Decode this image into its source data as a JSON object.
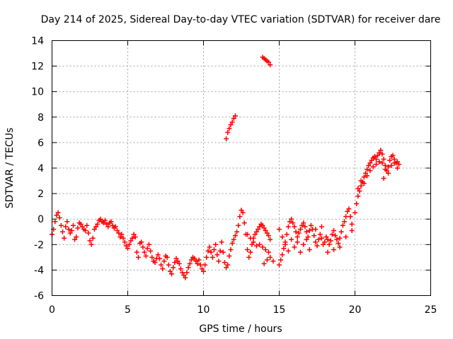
{
  "chart_data": {
    "type": "scatter",
    "title": "Day 214 of 2025, Sidereal Day-to-day VTEC variation (SDTVAR) for receiver dare",
    "xlabel": "GPS time / hours",
    "ylabel": "SDTVAR / TECUs",
    "xlim": [
      0,
      25
    ],
    "ylim": [
      -6,
      14
    ],
    "x_ticks": [
      0,
      5,
      10,
      15,
      20,
      25
    ],
    "y_ticks": [
      -6,
      -4,
      -2,
      0,
      2,
      4,
      6,
      8,
      10,
      12,
      14
    ],
    "grid": true,
    "marker": "+",
    "series_color": "#ff0000",
    "series": [
      {
        "name": "SDTVAR",
        "points": [
          [
            0.0,
            -1.2
          ],
          [
            0.1,
            -0.8
          ],
          [
            0.2,
            -0.2
          ],
          [
            0.3,
            0.3
          ],
          [
            0.4,
            0.5
          ],
          [
            0.5,
            0.1
          ],
          [
            0.6,
            -0.5
          ],
          [
            0.7,
            -1.0
          ],
          [
            0.8,
            -1.5
          ],
          [
            0.9,
            -0.6
          ],
          [
            1.0,
            -0.2
          ],
          [
            1.1,
            -0.8
          ],
          [
            1.2,
            -1.1
          ],
          [
            1.3,
            -0.9
          ],
          [
            1.4,
            -0.5
          ],
          [
            1.5,
            -1.6
          ],
          [
            1.6,
            -1.4
          ],
          [
            1.7,
            -0.7
          ],
          [
            1.8,
            -0.3
          ],
          [
            1.9,
            -0.4
          ],
          [
            2.0,
            -0.6
          ],
          [
            2.1,
            -0.8
          ],
          [
            2.2,
            -0.9
          ],
          [
            2.3,
            -0.5
          ],
          [
            2.4,
            -1.1
          ],
          [
            2.5,
            -1.7
          ],
          [
            2.6,
            -2.0
          ],
          [
            2.7,
            -1.5
          ],
          [
            2.8,
            -0.8
          ],
          [
            2.9,
            -0.6
          ],
          [
            3.0,
            -0.4
          ],
          [
            3.1,
            -0.1
          ],
          [
            3.2,
            0.0
          ],
          [
            3.3,
            -0.2
          ],
          [
            3.4,
            -0.3
          ],
          [
            3.5,
            -0.1
          ],
          [
            3.6,
            -0.4
          ],
          [
            3.7,
            -0.6
          ],
          [
            3.8,
            -0.3
          ],
          [
            3.9,
            -0.2
          ],
          [
            4.0,
            -0.5
          ],
          [
            4.1,
            -0.7
          ],
          [
            4.2,
            -0.6
          ],
          [
            4.3,
            -0.9
          ],
          [
            4.4,
            -1.1
          ],
          [
            4.5,
            -1.4
          ],
          [
            4.6,
            -1.2
          ],
          [
            4.7,
            -1.5
          ],
          [
            4.8,
            -1.8
          ],
          [
            4.9,
            -2.1
          ],
          [
            5.0,
            -2.3
          ],
          [
            5.1,
            -2.0
          ],
          [
            5.2,
            -1.7
          ],
          [
            5.3,
            -1.5
          ],
          [
            5.4,
            -1.2
          ],
          [
            5.5,
            -1.4
          ],
          [
            5.6,
            -2.6
          ],
          [
            5.7,
            -3.0
          ],
          [
            5.8,
            -1.9
          ],
          [
            5.9,
            -1.8
          ],
          [
            6.0,
            -2.2
          ],
          [
            6.1,
            -2.6
          ],
          [
            6.2,
            -2.9
          ],
          [
            6.3,
            -2.3
          ],
          [
            6.4,
            -2.0
          ],
          [
            6.5,
            -2.5
          ],
          [
            6.6,
            -3.0
          ],
          [
            6.7,
            -3.3
          ],
          [
            6.8,
            -3.4
          ],
          [
            6.9,
            -3.1
          ],
          [
            7.0,
            -2.8
          ],
          [
            7.1,
            -3.1
          ],
          [
            7.2,
            -3.6
          ],
          [
            7.3,
            -3.9
          ],
          [
            7.4,
            -3.3
          ],
          [
            7.5,
            -2.9
          ],
          [
            7.6,
            -3.0
          ],
          [
            7.7,
            -3.6
          ],
          [
            7.8,
            -4.1
          ],
          [
            7.9,
            -4.3
          ],
          [
            8.0,
            -3.8
          ],
          [
            8.1,
            -3.4
          ],
          [
            8.2,
            -3.1
          ],
          [
            8.3,
            -3.3
          ],
          [
            8.4,
            -3.5
          ],
          [
            8.5,
            -3.9
          ],
          [
            8.6,
            -4.2
          ],
          [
            8.7,
            -4.4
          ],
          [
            8.8,
            -4.6
          ],
          [
            8.9,
            -4.2
          ],
          [
            9.0,
            -3.8
          ],
          [
            9.1,
            -3.5
          ],
          [
            9.2,
            -3.2
          ],
          [
            9.3,
            -3.0
          ],
          [
            9.4,
            -3.1
          ],
          [
            9.5,
            -3.3
          ],
          [
            9.6,
            -3.5
          ],
          [
            9.7,
            -3.2
          ],
          [
            9.8,
            -3.6
          ],
          [
            9.9,
            -3.9
          ],
          [
            10.0,
            -4.1
          ],
          [
            10.1,
            -3.6
          ],
          [
            10.2,
            -3.0
          ],
          [
            10.3,
            -2.5
          ],
          [
            10.4,
            -2.2
          ],
          [
            10.5,
            -2.6
          ],
          [
            10.6,
            -3.0
          ],
          [
            10.7,
            -2.4
          ],
          [
            10.8,
            -2.0
          ],
          [
            10.9,
            -2.8
          ],
          [
            11.0,
            -3.3
          ],
          [
            11.1,
            -2.5
          ],
          [
            11.2,
            -1.8
          ],
          [
            11.3,
            -2.6
          ],
          [
            11.4,
            -3.4
          ],
          [
            11.5,
            -3.8
          ],
          [
            11.6,
            -3.6
          ],
          [
            11.7,
            -2.9
          ],
          [
            11.8,
            -2.4
          ],
          [
            11.9,
            -1.9
          ],
          [
            12.0,
            -1.6
          ],
          [
            12.1,
            -1.3
          ],
          [
            12.2,
            -1.0
          ],
          [
            12.3,
            -0.5
          ],
          [
            12.4,
            0.2
          ],
          [
            12.5,
            0.7
          ],
          [
            12.6,
            0.5
          ],
          [
            12.7,
            -0.3
          ],
          [
            12.8,
            -1.2
          ],
          [
            12.9,
            -2.4
          ],
          [
            13.0,
            -3.0
          ],
          [
            13.1,
            -2.6
          ],
          [
            13.2,
            -2.0
          ],
          [
            13.3,
            -1.5
          ],
          [
            13.4,
            -1.2
          ],
          [
            13.5,
            -1.0
          ],
          [
            13.6,
            -0.8
          ],
          [
            13.7,
            -0.6
          ],
          [
            13.8,
            -0.4
          ],
          [
            13.9,
            -0.5
          ],
          [
            14.0,
            -0.7
          ],
          [
            14.1,
            -0.9
          ],
          [
            14.2,
            -1.1
          ],
          [
            14.3,
            -1.3
          ],
          [
            14.4,
            -1.6
          ],
          [
            14.0,
            -3.5
          ],
          [
            14.2,
            -3.2
          ],
          [
            14.4,
            -3.0
          ],
          [
            14.6,
            -3.3
          ],
          [
            13.3,
            -1.8
          ],
          [
            13.5,
            -2.1
          ],
          [
            13.7,
            -2.0
          ],
          [
            13.9,
            -2.2
          ],
          [
            14.1,
            -2.4
          ],
          [
            14.3,
            -2.6
          ],
          [
            12.9,
            -1.2
          ],
          [
            13.1,
            -1.5
          ],
          [
            11.5,
            6.3
          ],
          [
            11.6,
            6.8
          ],
          [
            11.7,
            7.1
          ],
          [
            11.8,
            7.4
          ],
          [
            11.9,
            7.6
          ],
          [
            12.0,
            7.9
          ],
          [
            12.1,
            8.1
          ],
          [
            13.9,
            12.7
          ],
          [
            14.0,
            12.6
          ],
          [
            14.1,
            12.5
          ],
          [
            14.2,
            12.4
          ],
          [
            14.3,
            12.3
          ],
          [
            14.4,
            12.1
          ],
          [
            15.0,
            -3.6
          ],
          [
            15.1,
            -3.2
          ],
          [
            15.2,
            -2.8
          ],
          [
            15.3,
            -2.3
          ],
          [
            15.4,
            -1.8
          ],
          [
            15.5,
            -1.2
          ],
          [
            15.6,
            -0.6
          ],
          [
            15.7,
            -0.2
          ],
          [
            15.8,
            0.0
          ],
          [
            15.9,
            -0.3
          ],
          [
            16.0,
            -0.6
          ],
          [
            16.1,
            -1.0
          ],
          [
            16.2,
            -1.4
          ],
          [
            16.3,
            -1.1
          ],
          [
            16.4,
            -0.8
          ],
          [
            16.5,
            -0.5
          ],
          [
            16.6,
            -0.3
          ],
          [
            16.7,
            -0.6
          ],
          [
            16.8,
            -1.0
          ],
          [
            16.9,
            -1.4
          ],
          [
            17.0,
            -0.9
          ],
          [
            17.1,
            -0.5
          ],
          [
            17.2,
            -0.8
          ],
          [
            17.3,
            -1.3
          ],
          [
            17.4,
            -1.8
          ],
          [
            17.5,
            -2.1
          ],
          [
            17.6,
            -1.6
          ],
          [
            17.7,
            -1.2
          ],
          [
            17.8,
            -1.5
          ],
          [
            17.9,
            -2.0
          ],
          [
            18.0,
            -1.8
          ],
          [
            18.1,
            -1.4
          ],
          [
            18.2,
            -1.6
          ],
          [
            18.3,
            -2.0
          ],
          [
            18.4,
            -1.7
          ],
          [
            18.5,
            -1.2
          ],
          [
            18.6,
            -0.9
          ],
          [
            18.7,
            -1.3
          ],
          [
            18.8,
            -1.6
          ],
          [
            18.9,
            -1.9
          ],
          [
            19.0,
            -1.5
          ],
          [
            19.1,
            -1.0
          ],
          [
            19.2,
            -0.5
          ],
          [
            19.3,
            -0.2
          ],
          [
            19.4,
            0.2
          ],
          [
            19.5,
            0.6
          ],
          [
            19.6,
            0.8
          ],
          [
            19.7,
            0.2
          ],
          [
            19.8,
            -0.4
          ],
          [
            15.0,
            -0.8
          ],
          [
            15.2,
            -1.4
          ],
          [
            15.4,
            -2.0
          ],
          [
            15.6,
            -2.5
          ],
          [
            15.8,
            -1.6
          ],
          [
            16.0,
            -2.2
          ],
          [
            16.2,
            -1.8
          ],
          [
            16.4,
            -2.6
          ],
          [
            16.6,
            -2.0
          ],
          [
            16.8,
            -1.6
          ],
          [
            17.0,
            -2.4
          ],
          [
            17.4,
            -0.8
          ],
          [
            17.8,
            -0.6
          ],
          [
            18.2,
            -2.6
          ],
          [
            18.6,
            -2.4
          ],
          [
            19.0,
            -2.2
          ],
          [
            19.4,
            -1.4
          ],
          [
            19.8,
            -0.9
          ],
          [
            20.0,
            0.5
          ],
          [
            20.1,
            1.2
          ],
          [
            20.2,
            1.8
          ],
          [
            20.3,
            2.2
          ],
          [
            20.4,
            2.6
          ],
          [
            20.5,
            2.9
          ],
          [
            20.6,
            3.3
          ],
          [
            20.7,
            3.6
          ],
          [
            20.8,
            3.9
          ],
          [
            20.9,
            4.2
          ],
          [
            21.0,
            4.4
          ],
          [
            21.1,
            4.6
          ],
          [
            21.2,
            4.8
          ],
          [
            21.3,
            4.9
          ],
          [
            21.4,
            4.7
          ],
          [
            21.5,
            5.0
          ],
          [
            21.6,
            5.2
          ],
          [
            21.7,
            5.4
          ],
          [
            21.8,
            5.1
          ],
          [
            21.9,
            4.7
          ],
          [
            22.0,
            4.2
          ],
          [
            22.1,
            3.8
          ],
          [
            22.2,
            4.1
          ],
          [
            22.3,
            4.6
          ],
          [
            22.4,
            4.9
          ],
          [
            22.5,
            5.0
          ],
          [
            22.6,
            4.7
          ],
          [
            22.7,
            4.4
          ],
          [
            22.8,
            4.5
          ],
          [
            22.9,
            4.3
          ],
          [
            20.2,
            2.4
          ],
          [
            20.4,
            3.0
          ],
          [
            20.6,
            2.8
          ],
          [
            20.8,
            3.4
          ],
          [
            21.0,
            3.8
          ],
          [
            21.2,
            4.1
          ],
          [
            21.4,
            4.3
          ],
          [
            21.6,
            4.5
          ],
          [
            21.8,
            4.4
          ],
          [
            22.0,
            3.9
          ],
          [
            22.2,
            3.6
          ],
          [
            22.4,
            4.2
          ],
          [
            22.6,
            4.4
          ],
          [
            22.8,
            4.0
          ],
          [
            21.9,
            3.2
          ]
        ]
      }
    ]
  }
}
